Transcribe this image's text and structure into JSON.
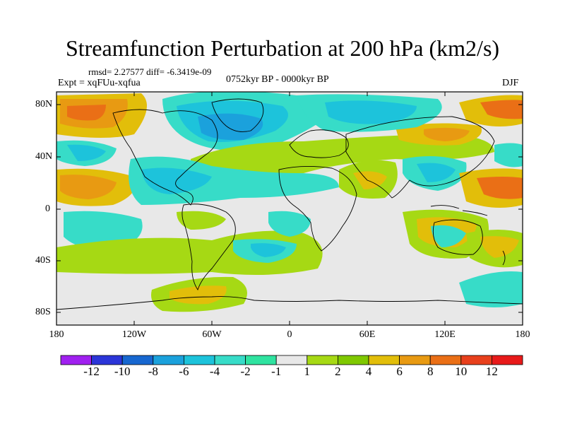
{
  "title": "Streamfunction Perturbation at 200 hPa (km2/s)",
  "stats": "rmsd= 2.27577 diff= -6.3419e-09",
  "experiment": "Expt = xqFUu-xqfua",
  "period": "0752kyr BP - 0000kyr BP",
  "season": "DJF",
  "lat_labels": [
    "80N",
    "40N",
    "0",
    "40S",
    "80S"
  ],
  "lon_labels": [
    "180",
    "120W",
    "60W",
    "0",
    "60E",
    "120E",
    "180"
  ],
  "colorbar": {
    "labels": [
      "-12",
      "-10",
      "-8",
      "-6",
      "-4",
      "-2",
      "-1",
      "1",
      "2",
      "4",
      "6",
      "8",
      "10",
      "12"
    ],
    "colors": [
      "#a020f0",
      "#2b35d8",
      "#1767d0",
      "#1ba1dc",
      "#1dc3db",
      "#37dcc8",
      "#2fe3a0",
      "#e8e8e8",
      "#a6d914",
      "#7fc800",
      "#e2be0a",
      "#e89a12",
      "#ea6f16",
      "#e8401c",
      "#e81a1a"
    ]
  },
  "colors": {
    "neutral": "#e8e8e8",
    "coastline": "#000000",
    "frame": "#000000"
  }
}
